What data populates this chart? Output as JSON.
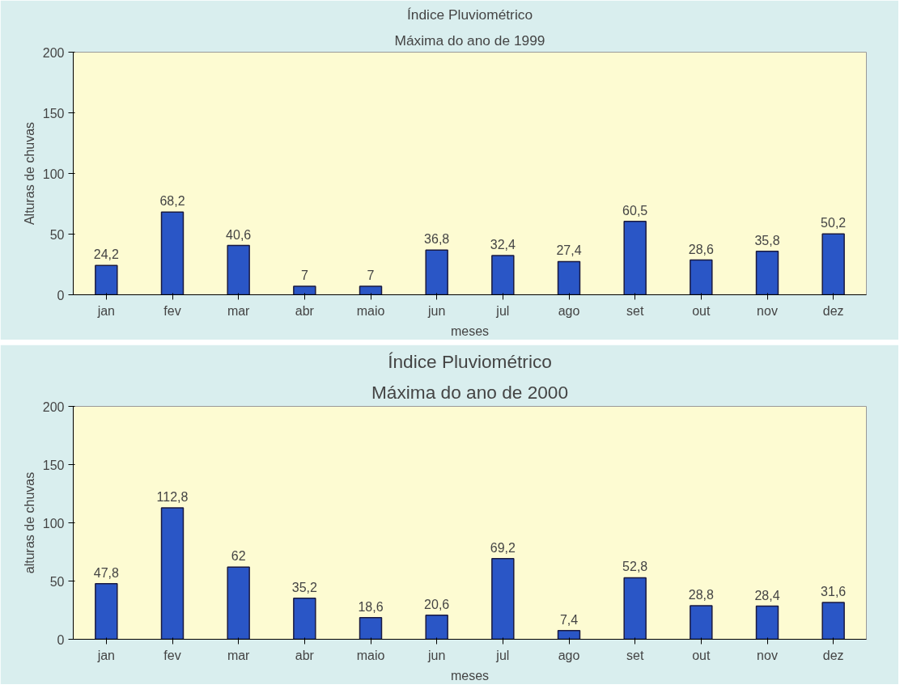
{
  "chart_data": [
    {
      "type": "bar",
      "title": "Índice Pluviométrico",
      "subtitle": "Máxima do ano de 1999",
      "xlabel": "meses",
      "ylabel": "Alturas de chuvas",
      "categories": [
        "jan",
        "fev",
        "mar",
        "abr",
        "maio",
        "jun",
        "jul",
        "ago",
        "set",
        "out",
        "nov",
        "dez"
      ],
      "values": [
        24.2,
        68.2,
        40.6,
        7,
        7,
        36.8,
        32.4,
        27.4,
        60.5,
        28.6,
        35.8,
        50.2
      ],
      "value_labels": [
        "24,2",
        "68,2",
        "40,6",
        "7",
        "7",
        "36,8",
        "32,4",
        "27,4",
        "60,5",
        "28,6",
        "35,8",
        "50,2"
      ],
      "color": "#2a56c6",
      "ylim": [
        0,
        200
      ],
      "yticks": [
        0,
        50,
        100,
        150,
        200
      ],
      "grid": false
    },
    {
      "type": "bar",
      "title": "Índice Pluviométrico",
      "subtitle": "Máxima do ano de 2000",
      "xlabel": "meses",
      "ylabel": "alturas de chuvas",
      "categories": [
        "jan",
        "fev",
        "mar",
        "abr",
        "maio",
        "jun",
        "jul",
        "ago",
        "set",
        "out",
        "nov",
        "dez"
      ],
      "values": [
        47.8,
        112.8,
        62,
        35.2,
        18.6,
        20.6,
        69.2,
        7.4,
        52.8,
        28.8,
        28.4,
        31.6
      ],
      "value_labels": [
        "47,8",
        "112,8",
        "62",
        "35,2",
        "18,6",
        "20,6",
        "69,2",
        "7,4",
        "52,8",
        "28,8",
        "28,4",
        "31,6"
      ],
      "color": "#2a56c6",
      "ylim": [
        0,
        200
      ],
      "yticks": [
        0,
        50,
        100,
        150,
        200
      ],
      "grid": false
    }
  ]
}
